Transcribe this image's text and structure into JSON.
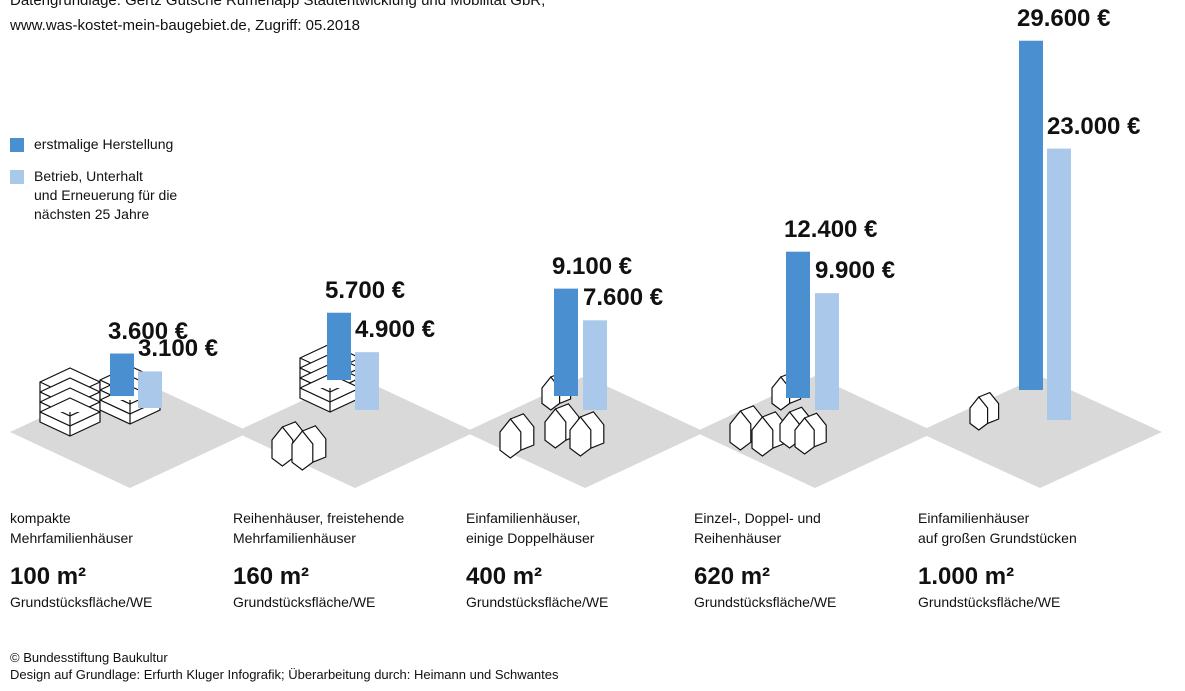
{
  "chart_data": {
    "type": "bar",
    "source": [
      "Datengrundlage: Gertz Gutsche Rümenapp Stadtentwicklung und Mobilität GbR;",
      "www.was-kostet-mein-baugebiet.de, Zugriff: 05.2018"
    ],
    "categories": [
      "kompakte\nMehrfamilienhäuser",
      "Reihenhäuser, freistehende\nMehrfamilienhäuser",
      "Einfamilienhäuser,\neinige Doppelhäuser",
      "Einzel-, Doppel- und\nReihenhäuser",
      "Einfamilienhäuser\nauf großen Grundstücken"
    ],
    "areas": [
      "100 m²",
      "160 m²",
      "400 m²",
      "620 m²",
      "1.000 m²"
    ],
    "area_unit": "Grundstücksfläche/WE",
    "series": [
      {
        "name": "erstmalige Herstellung",
        "color": "#4a90d0",
        "values": [
          3600,
          5700,
          9100,
          12400,
          29600
        ],
        "value_labels": [
          "3.600 €",
          "5.700 €",
          "9.100 €",
          "12.400 €",
          "29.600 €"
        ]
      },
      {
        "name": "Betrieb, Unterhalt\nund Erneuerung für die\nnächsten 25 Jahre",
        "color": "#a9c8ea",
        "values": [
          3100,
          4900,
          7600,
          9900,
          23000
        ],
        "value_labels": [
          "3.100 €",
          "4.900 €",
          "7.600 €",
          "9.900 €",
          "23.000 €"
        ]
      }
    ],
    "footer": [
      "© Bundesstiftung Baukultur",
      "Design auf Grundlage: Erfurth Kluger Infografik; Überarbeitung durch: Heimann und Schwantes"
    ]
  }
}
